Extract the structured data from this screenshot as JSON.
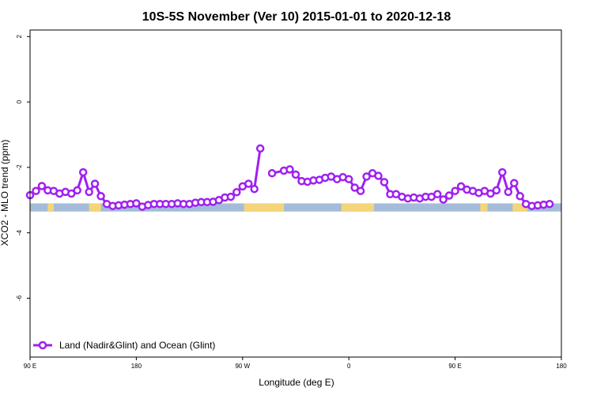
{
  "chart_data": {
    "type": "line",
    "title": "10S-5S November (Ver 10)   2015-01-01 to 2020-12-18",
    "xlabel": "Longitude (deg E)",
    "ylabel": "XCO2 - MLO trend (ppm)",
    "xlim": [
      90,
      450
    ],
    "ylim": [
      -7.8,
      2.2
    ],
    "x_tick_values": [
      90,
      162,
      234,
      306,
      378,
      450
    ],
    "x_tick_labels": [
      "90 E",
      "180",
      "90 W",
      "0",
      "90 E",
      "180"
    ],
    "y_tick_values": [
      2,
      0,
      -2,
      -4,
      -6
    ],
    "y_tick_labels": [
      "2",
      "0",
      "-2",
      "-4",
      "-6"
    ],
    "grid": false,
    "legend_position": "bottom-left",
    "colors": {
      "series": "#a020f0",
      "ocean": "#a5bcd9",
      "land": "#f5d57a"
    },
    "land_ocean_band": {
      "y_top": -3.1,
      "y_bottom": -3.35,
      "land_intervals": [
        [
          102,
          106
        ],
        [
          130,
          138
        ],
        [
          235,
          262
        ],
        [
          301,
          323
        ],
        [
          395,
          400
        ],
        [
          417,
          427
        ]
      ]
    },
    "series": [
      {
        "name": "Land (Nadir&Glint) and Ocean (Glint)",
        "points": [
          [
            90,
            -2.85
          ],
          [
            94,
            -2.72
          ],
          [
            98,
            -2.57
          ],
          [
            102,
            -2.7
          ],
          [
            106,
            -2.72
          ],
          [
            110,
            -2.8
          ],
          [
            114,
            -2.75
          ],
          [
            118,
            -2.8
          ],
          [
            122,
            -2.7
          ],
          [
            126,
            -2.15
          ],
          [
            130,
            -2.75
          ],
          [
            134,
            -2.5
          ],
          [
            138,
            -2.88
          ],
          [
            142,
            -3.12
          ],
          [
            146,
            -3.18
          ],
          [
            150,
            -3.16
          ],
          [
            154,
            -3.14
          ],
          [
            158,
            -3.12
          ],
          [
            162,
            -3.1
          ],
          [
            166,
            -3.2
          ],
          [
            170,
            -3.15
          ],
          [
            174,
            -3.12
          ],
          [
            178,
            -3.12
          ],
          [
            182,
            -3.12
          ],
          [
            186,
            -3.12
          ],
          [
            190,
            -3.1
          ],
          [
            194,
            -3.12
          ],
          [
            198,
            -3.12
          ],
          [
            202,
            -3.08
          ],
          [
            206,
            -3.06
          ],
          [
            210,
            -3.06
          ],
          [
            214,
            -3.05
          ],
          [
            218,
            -3.0
          ],
          [
            222,
            -2.92
          ],
          [
            226,
            -2.9
          ],
          [
            230,
            -2.76
          ],
          [
            234,
            -2.58
          ],
          [
            238,
            -2.5
          ],
          [
            242,
            -2.66
          ],
          [
            246,
            -1.42
          ],
          null,
          [
            254,
            -2.18
          ],
          [
            262,
            -2.1
          ],
          [
            266,
            -2.06
          ],
          [
            270,
            -2.22
          ],
          [
            274,
            -2.42
          ],
          [
            278,
            -2.44
          ],
          [
            282,
            -2.4
          ],
          [
            286,
            -2.38
          ],
          [
            290,
            -2.32
          ],
          [
            294,
            -2.28
          ],
          [
            298,
            -2.36
          ],
          [
            302,
            -2.3
          ],
          [
            306,
            -2.36
          ],
          [
            310,
            -2.62
          ],
          [
            314,
            -2.72
          ],
          [
            318,
            -2.28
          ],
          [
            322,
            -2.18
          ],
          [
            326,
            -2.26
          ],
          [
            330,
            -2.45
          ],
          [
            334,
            -2.82
          ],
          [
            338,
            -2.82
          ],
          [
            342,
            -2.9
          ],
          [
            346,
            -2.95
          ],
          [
            350,
            -2.92
          ],
          [
            354,
            -2.95
          ],
          [
            358,
            -2.9
          ],
          [
            362,
            -2.9
          ],
          [
            366,
            -2.82
          ],
          [
            370,
            -2.98
          ],
          [
            374,
            -2.86
          ],
          [
            378,
            -2.72
          ],
          [
            382,
            -2.58
          ],
          [
            386,
            -2.68
          ],
          [
            390,
            -2.72
          ],
          [
            394,
            -2.78
          ],
          [
            398,
            -2.72
          ],
          [
            402,
            -2.8
          ],
          [
            406,
            -2.7
          ],
          [
            410,
            -2.15
          ],
          [
            414,
            -2.75
          ],
          [
            418,
            -2.48
          ],
          [
            422,
            -2.88
          ],
          [
            426,
            -3.12
          ],
          [
            430,
            -3.18
          ],
          [
            434,
            -3.16
          ],
          [
            438,
            -3.14
          ],
          [
            442,
            -3.12
          ]
        ]
      }
    ]
  }
}
